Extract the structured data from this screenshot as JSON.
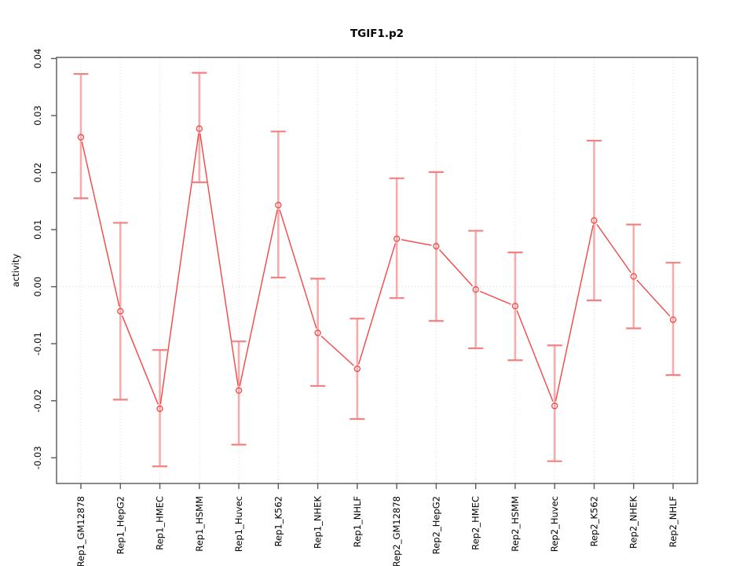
{
  "chart_data": {
    "type": "line",
    "title": "TGIF1.p2",
    "ylabel": "activity",
    "xlabel": "",
    "legend": "none",
    "grid": "dotted vertical gridline at each category plus dotted horizontal line at y=0",
    "categories": [
      "Rep1_GM12878",
      "Rep1_HepG2",
      "Rep1_HMEC",
      "Rep1_HSMM",
      "Rep1_Huvec",
      "Rep1_K562",
      "Rep1_NHEK",
      "Rep1_NHLF",
      "Rep2_GM12878",
      "Rep2_HepG2",
      "Rep2_HMEC",
      "Rep2_HSMM",
      "Rep2_Huvec",
      "Rep2_K562",
      "Rep2_NHEK",
      "Rep2_NHLF"
    ],
    "series": [
      {
        "name": "activity",
        "marker": "open-circle",
        "values": [
          0.0262,
          -0.0043,
          -0.0214,
          0.0277,
          -0.0182,
          0.0143,
          -0.0081,
          -0.0144,
          0.0084,
          0.0071,
          -0.0005,
          -0.0034,
          -0.0209,
          0.0116,
          0.0018,
          -0.0058
        ],
        "error_low": [
          0.0155,
          -0.0198,
          -0.0315,
          0.0183,
          -0.0277,
          0.0016,
          -0.0174,
          -0.0232,
          -0.002,
          -0.006,
          -0.0108,
          -0.0129,
          -0.0306,
          -0.0024,
          -0.0073,
          -0.0155
        ],
        "error_high": [
          0.0373,
          0.0112,
          -0.0111,
          0.0375,
          -0.0096,
          0.0272,
          0.0014,
          -0.0056,
          0.019,
          0.0201,
          0.0098,
          0.006,
          -0.0103,
          0.0256,
          0.0109,
          0.0042
        ]
      }
    ],
    "ylim": [
      -0.0345,
      0.0402
    ],
    "yticks": [
      -0.03,
      -0.02,
      -0.01,
      0.0,
      0.01,
      0.02,
      0.03,
      0.04
    ],
    "ytick_labels": [
      "-0.03",
      "-0.02",
      "-0.01",
      "0.00",
      "0.01",
      "0.02",
      "0.03",
      "0.04"
    ],
    "x_tick_label_rotation": 90,
    "y_tick_label_rotation": 90,
    "colors": {
      "series": "#f64545",
      "error_cap": "#f38181",
      "error_stem": "#f7abab",
      "grid": "#d8d8d8",
      "axis": "#595959",
      "text": "#000000",
      "background": "#ffffff"
    }
  }
}
